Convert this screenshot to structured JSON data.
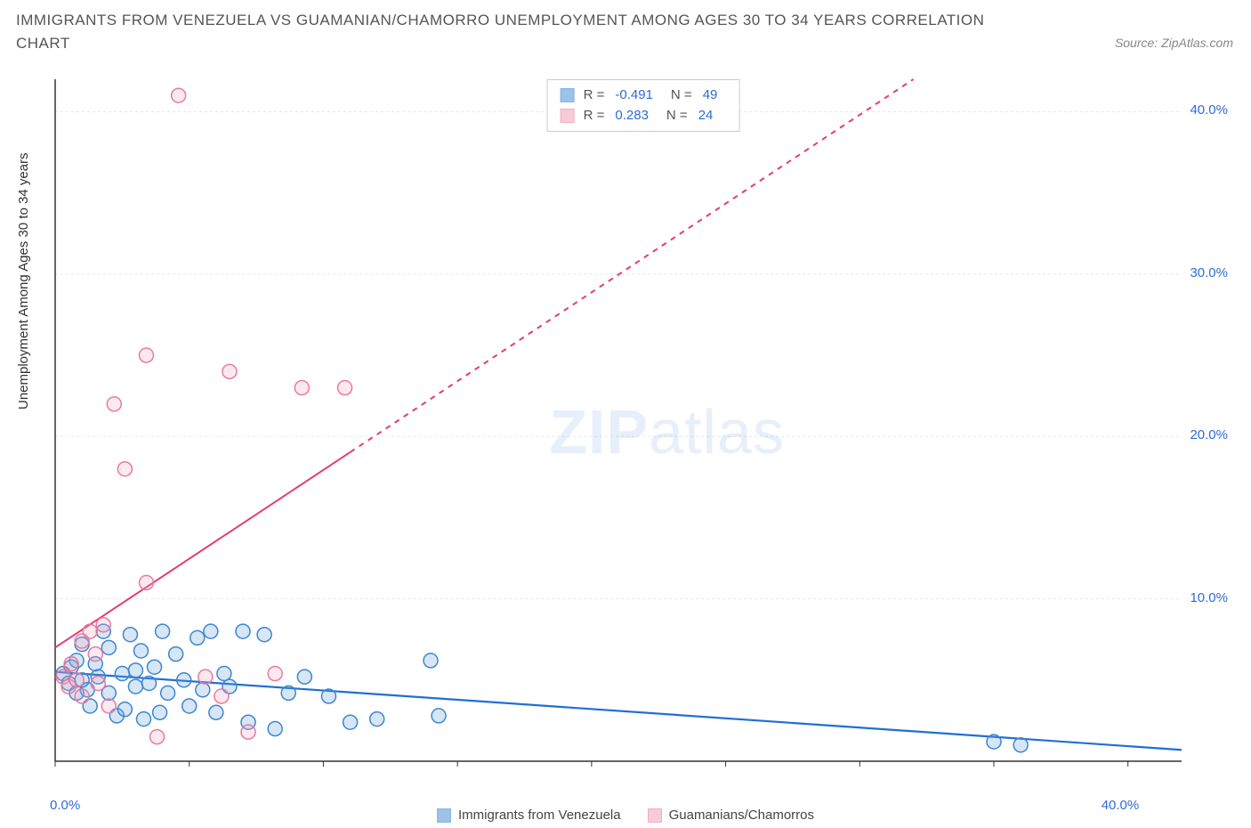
{
  "title": "IMMIGRANTS FROM VENEZUELA VS GUAMANIAN/CHAMORRO UNEMPLOYMENT AMONG AGES 30 TO 34 YEARS CORRELATION CHART",
  "source_label": "Source:",
  "source_value": "ZipAtlas.com",
  "y_axis_label": "Unemployment Among Ages 30 to 34 years",
  "watermark_a": "ZIP",
  "watermark_b": "atlas",
  "chart": {
    "type": "scatter",
    "xlim": [
      0,
      42
    ],
    "ylim": [
      0,
      42
    ],
    "x_ticks": [
      0,
      5,
      10,
      15,
      20,
      25,
      30,
      35,
      40
    ],
    "x_tick_labels": [
      "0.0%",
      "",
      "",
      "",
      "",
      "",
      "",
      "",
      "40.0%"
    ],
    "y_ticks": [
      10,
      20,
      30,
      40
    ],
    "y_tick_labels": [
      "10.0%",
      "20.0%",
      "30.0%",
      "40.0%"
    ],
    "grid_color": "#e8e8e8",
    "axis_color": "#333333",
    "background_color": "#ffffff",
    "marker_radius": 8,
    "marker_stroke_width": 1.5,
    "marker_fill_opacity": 0.25,
    "series": [
      {
        "name": "Immigrants from Venezuela",
        "color": "#5a9bd8",
        "stroke": "#3d86cf",
        "r_value": "-0.491",
        "n_value": "49",
        "line": {
          "x1": 0,
          "y1": 5.5,
          "x2": 42,
          "y2": 0.7,
          "dashed": false,
          "width": 2.2,
          "color": "#1f6fd6"
        },
        "points": [
          [
            0.3,
            5.4
          ],
          [
            0.5,
            4.8
          ],
          [
            0.6,
            5.8
          ],
          [
            0.8,
            4.2
          ],
          [
            0.8,
            6.2
          ],
          [
            1.0,
            5.0
          ],
          [
            1.0,
            7.2
          ],
          [
            1.2,
            4.4
          ],
          [
            1.3,
            3.4
          ],
          [
            1.5,
            6.0
          ],
          [
            1.6,
            5.2
          ],
          [
            1.8,
            8.0
          ],
          [
            2.0,
            4.2
          ],
          [
            2.0,
            7.0
          ],
          [
            2.3,
            2.8
          ],
          [
            2.5,
            5.4
          ],
          [
            2.6,
            3.2
          ],
          [
            2.8,
            7.8
          ],
          [
            3.0,
            4.6
          ],
          [
            3.0,
            5.6
          ],
          [
            3.2,
            6.8
          ],
          [
            3.3,
            2.6
          ],
          [
            3.5,
            4.8
          ],
          [
            3.7,
            5.8
          ],
          [
            3.9,
            3.0
          ],
          [
            4.0,
            8.0
          ],
          [
            4.2,
            4.2
          ],
          [
            4.5,
            6.6
          ],
          [
            4.8,
            5.0
          ],
          [
            5.0,
            3.4
          ],
          [
            5.3,
            7.6
          ],
          [
            5.5,
            4.4
          ],
          [
            5.8,
            8.0
          ],
          [
            6.0,
            3.0
          ],
          [
            6.3,
            5.4
          ],
          [
            6.5,
            4.6
          ],
          [
            7.0,
            8.0
          ],
          [
            7.2,
            2.4
          ],
          [
            7.8,
            7.8
          ],
          [
            8.2,
            2.0
          ],
          [
            8.7,
            4.2
          ],
          [
            9.3,
            5.2
          ],
          [
            10.2,
            4.0
          ],
          [
            11.0,
            2.4
          ],
          [
            12.0,
            2.6
          ],
          [
            14.0,
            6.2
          ],
          [
            14.3,
            2.8
          ],
          [
            35.0,
            1.2
          ],
          [
            36.0,
            1.0
          ]
        ]
      },
      {
        "name": "Guamanians/Chamorros",
        "color": "#f2a8be",
        "stroke": "#e87aa0",
        "r_value": "0.283",
        "n_value": "24",
        "line": {
          "x1": 0,
          "y1": 7.0,
          "x2": 32,
          "y2": 42,
          "dashed_from_x": 11,
          "width": 2.0,
          "color": "#e23c75"
        },
        "points": [
          [
            0.3,
            5.2
          ],
          [
            0.5,
            4.6
          ],
          [
            0.6,
            6.0
          ],
          [
            0.8,
            5.0
          ],
          [
            1.0,
            7.4
          ],
          [
            1.0,
            4.0
          ],
          [
            1.3,
            8.0
          ],
          [
            1.5,
            6.6
          ],
          [
            1.6,
            4.8
          ],
          [
            1.8,
            8.4
          ],
          [
            2.0,
            3.4
          ],
          [
            2.2,
            22.0
          ],
          [
            2.6,
            18.0
          ],
          [
            3.4,
            25.0
          ],
          [
            3.4,
            11.0
          ],
          [
            3.8,
            1.5
          ],
          [
            4.6,
            41.0
          ],
          [
            5.6,
            5.2
          ],
          [
            6.2,
            4.0
          ],
          [
            6.5,
            24.0
          ],
          [
            7.2,
            1.8
          ],
          [
            8.2,
            5.4
          ],
          [
            9.2,
            23.0
          ],
          [
            10.8,
            23.0
          ]
        ]
      }
    ]
  },
  "stats_legend": {
    "r_label": "R =",
    "n_label": "N ="
  },
  "legend": {
    "series_a": "Immigrants from Venezuela",
    "series_b": "Guamanians/Chamorros"
  }
}
